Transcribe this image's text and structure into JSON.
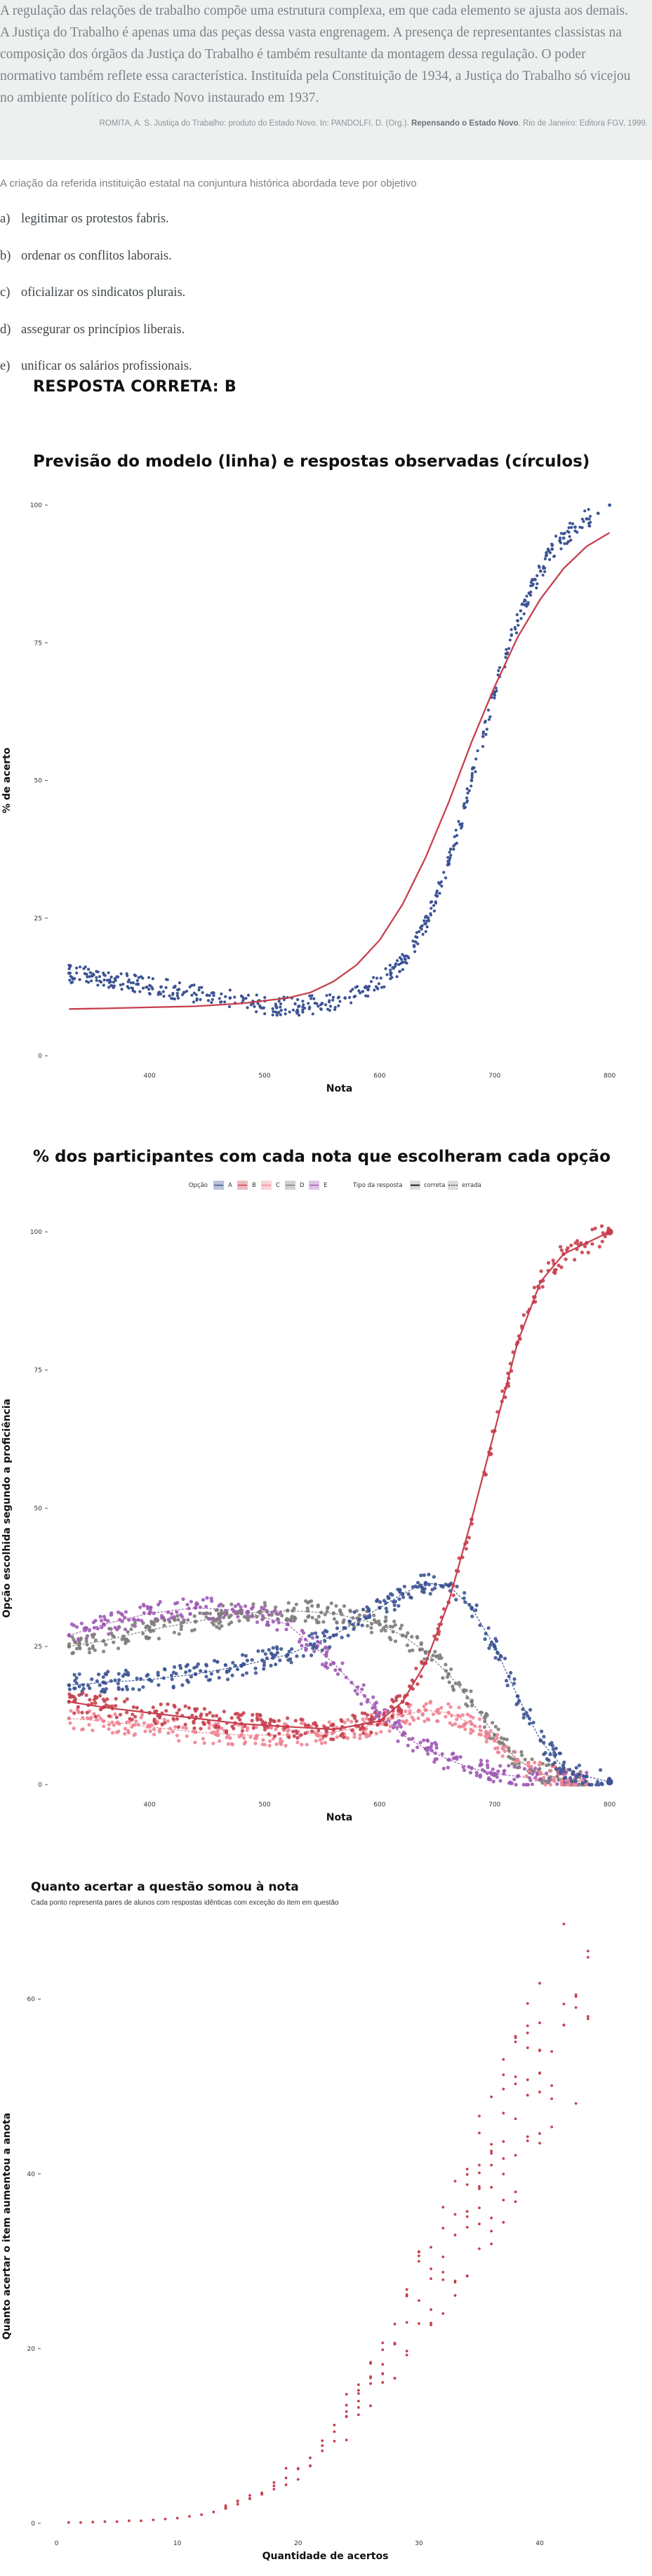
{
  "passage": {
    "text": "A regulação das relações de trabalho compõe uma estrutura complexa, em que cada elemento se ajusta aos demais. A Justiça do Trabalho é apenas uma das peças dessa vasta engrenagem. A presença de representantes classistas na composição dos órgãos da Justiça do Trabalho é também resultante da montagem dessa regulação. O poder normativo também reflete essa característica. Instituída pela Constituição de 1934, a Justiça do Trabalho só vicejou no ambiente político do Estado Novo instaurado em 1937.",
    "source_pre": "ROMITA, A. S. Justiça do Trabalho: produto do Estado Novo. In: PANDOLFI, D. (Org.).",
    "source_bold": "Repensando o Estado Novo",
    "source_post": ". Rio de Janeiro: Editora FGV, 1999."
  },
  "question": "A criação da referida instituição estatal na conjuntura histórica abordada teve por objetivo",
  "options": [
    {
      "letter": "a)",
      "text": "legitimar os protestos fabris."
    },
    {
      "letter": "b)",
      "text": "ordenar os conflitos laborais."
    },
    {
      "letter": "c)",
      "text": "oficializar os sindicatos plurais."
    },
    {
      "letter": "d)",
      "text": "assegurar os princípios liberais."
    },
    {
      "letter": "e)",
      "text": "unificar os salários profissionais."
    }
  ],
  "answer": "RESPOSTA CORRETA: B",
  "colors": {
    "blue": "#3d5494",
    "red": "#c6404e",
    "pink": "#ef8493",
    "gray": "#7e7c7a",
    "purple": "#a05bb5"
  },
  "chart_data": [
    {
      "type": "scatter",
      "title": "Previsão do modelo (linha) e respostas observadas (círculos)",
      "xlabel": "Nota",
      "ylabel": "% de acerto",
      "x_ticks": [
        400,
        500,
        600,
        700,
        800
      ],
      "y_ticks": [
        0,
        25,
        50,
        75,
        100
      ],
      "xlim": [
        320,
        810
      ],
      "ylim": [
        0,
        100
      ],
      "grid": false,
      "series": [
        {
          "style": "points",
          "color": "#3d5494",
          "x": [
            330,
            350,
            370,
            390,
            410,
            430,
            450,
            470,
            490,
            510,
            530,
            550,
            570,
            590,
            610,
            620,
            630,
            640,
            650,
            660,
            670,
            680,
            690,
            700,
            710,
            720,
            730,
            740,
            750,
            760,
            770,
            780,
            790,
            800
          ],
          "y": [
            15,
            14.5,
            14,
            13,
            12.5,
            11.5,
            11,
            10.5,
            9.5,
            9,
            9,
            9.5,
            10.5,
            12,
            15,
            17,
            20,
            24,
            29,
            35,
            42,
            50,
            58,
            66,
            73,
            79,
            84,
            88,
            92,
            94,
            96,
            97.5,
            98.5,
            100
          ]
        },
        {
          "style": "line",
          "color": "#c6404e",
          "x": [
            330,
            360,
            400,
            440,
            480,
            520,
            540,
            560,
            580,
            600,
            620,
            640,
            660,
            680,
            700,
            720,
            740,
            760,
            780,
            800
          ],
          "y": [
            8.5,
            8.6,
            8.8,
            9,
            9.5,
            10.5,
            11.5,
            13.5,
            16.5,
            21,
            27.5,
            36,
            46,
            57,
            67,
            76,
            83,
            88.5,
            92.5,
            95
          ]
        }
      ]
    },
    {
      "type": "scatter",
      "title": "% dos participantes com cada nota que escolheram cada opção",
      "xlabel": "Nota",
      "ylabel": "Opção escolhida segundo a proficiência",
      "x_ticks": [
        400,
        500,
        600,
        700,
        800
      ],
      "y_ticks": [
        0,
        25,
        50,
        75,
        100
      ],
      "xlim": [
        320,
        810
      ],
      "ylim": [
        0,
        100
      ],
      "grid": false,
      "legend": {
        "position": "top",
        "option_title": "Opção",
        "option_items": [
          "A",
          "B",
          "C",
          "D",
          "E"
        ],
        "type_title": "Tipo da resposta",
        "type_items": [
          "correta",
          "errada"
        ]
      },
      "series": [
        {
          "name": "A",
          "color": "#3d5494",
          "x": [
            330,
            360,
            400,
            440,
            480,
            520,
            560,
            600,
            620,
            640,
            660,
            680,
            700,
            720,
            740,
            760,
            780,
            800
          ],
          "y": [
            18,
            18.5,
            19,
            20,
            21.5,
            23.5,
            27,
            32,
            34.5,
            36.5,
            36,
            32,
            25,
            16,
            8,
            3,
            1.5,
            0.5
          ]
        },
        {
          "name": "B",
          "color": "#c6404e",
          "x": [
            330,
            360,
            400,
            440,
            480,
            520,
            560,
            600,
            620,
            640,
            660,
            680,
            700,
            720,
            740,
            760,
            780,
            800
          ],
          "y": [
            15,
            14,
            13,
            12,
            11,
            10.5,
            10,
            11.5,
            15,
            22,
            33,
            48,
            64,
            80,
            91,
            96,
            98,
            100
          ]
        },
        {
          "name": "C",
          "color": "#ef8493",
          "x": [
            330,
            360,
            400,
            440,
            480,
            520,
            560,
            600,
            620,
            640,
            660,
            680,
            700,
            720,
            740,
            760,
            780
          ],
          "y": [
            12,
            11.5,
            10.5,
            9.5,
            9,
            9,
            9.5,
            11,
            12.5,
            13.5,
            13,
            11,
            8,
            4.5,
            2,
            1,
            0.5
          ]
        },
        {
          "name": "D",
          "color": "#7e7c7a",
          "x": [
            330,
            360,
            400,
            440,
            480,
            520,
            560,
            600,
            620,
            640,
            660,
            680,
            700,
            720,
            740,
            760,
            780
          ],
          "y": [
            25,
            26,
            28,
            29.5,
            31,
            31.5,
            31,
            29,
            27,
            24,
            20,
            15,
            9,
            4.5,
            2,
            1,
            0.5
          ]
        },
        {
          "name": "E",
          "color": "#a05bb5",
          "x": [
            330,
            360,
            400,
            440,
            480,
            520,
            560,
            600,
            620,
            640,
            660,
            680,
            700,
            720,
            740,
            760,
            780
          ],
          "y": [
            27,
            29,
            31,
            32,
            31.5,
            29,
            22,
            13,
            9,
            6.5,
            4.5,
            3,
            2,
            1.5,
            1,
            0.5,
            0.2
          ]
        }
      ]
    },
    {
      "type": "scatter",
      "title": "Quanto acertar a questão somou à nota",
      "subtitle": "Cada ponto representa pares de alunos com respostas idênticas com exceção do item em questão",
      "xlabel": "Quantidade de acertos",
      "ylabel": "Quanto acertar o item aumentou a anota",
      "x_ticks": [
        0,
        10,
        20,
        30,
        40
      ],
      "y_ticks": [
        0,
        20,
        40,
        60
      ],
      "xlim": [
        -0.5,
        45
      ],
      "ylim": [
        0,
        68
      ],
      "grid": false,
      "series": [
        {
          "color": "#c6404e",
          "x": [
            1,
            2,
            3,
            4,
            5,
            6,
            7,
            8,
            9,
            10,
            11,
            12,
            13,
            14,
            15,
            16,
            17,
            18,
            19,
            20,
            21,
            22,
            23,
            24,
            25,
            26,
            27,
            28,
            29,
            30,
            31,
            32,
            33,
            34,
            35,
            36,
            37,
            38,
            39,
            40,
            41,
            42,
            43,
            44
          ],
          "y": [
            0.1,
            0.1,
            0.15,
            0.2,
            0.2,
            0.3,
            0.3,
            0.4,
            0.5,
            0.6,
            0.8,
            1,
            1.3,
            1.7,
            2.2,
            2.8,
            3.5,
            4.3,
            5.2,
            6.3,
            7.5,
            8.9,
            10.5,
            12.2,
            14,
            16,
            18.2,
            20.5,
            23,
            25.5,
            28,
            30.5,
            33,
            35.7,
            38.3,
            41,
            43.7,
            46.3,
            49,
            51.5,
            54,
            57,
            60.5,
            65.5
          ]
        }
      ]
    }
  ]
}
